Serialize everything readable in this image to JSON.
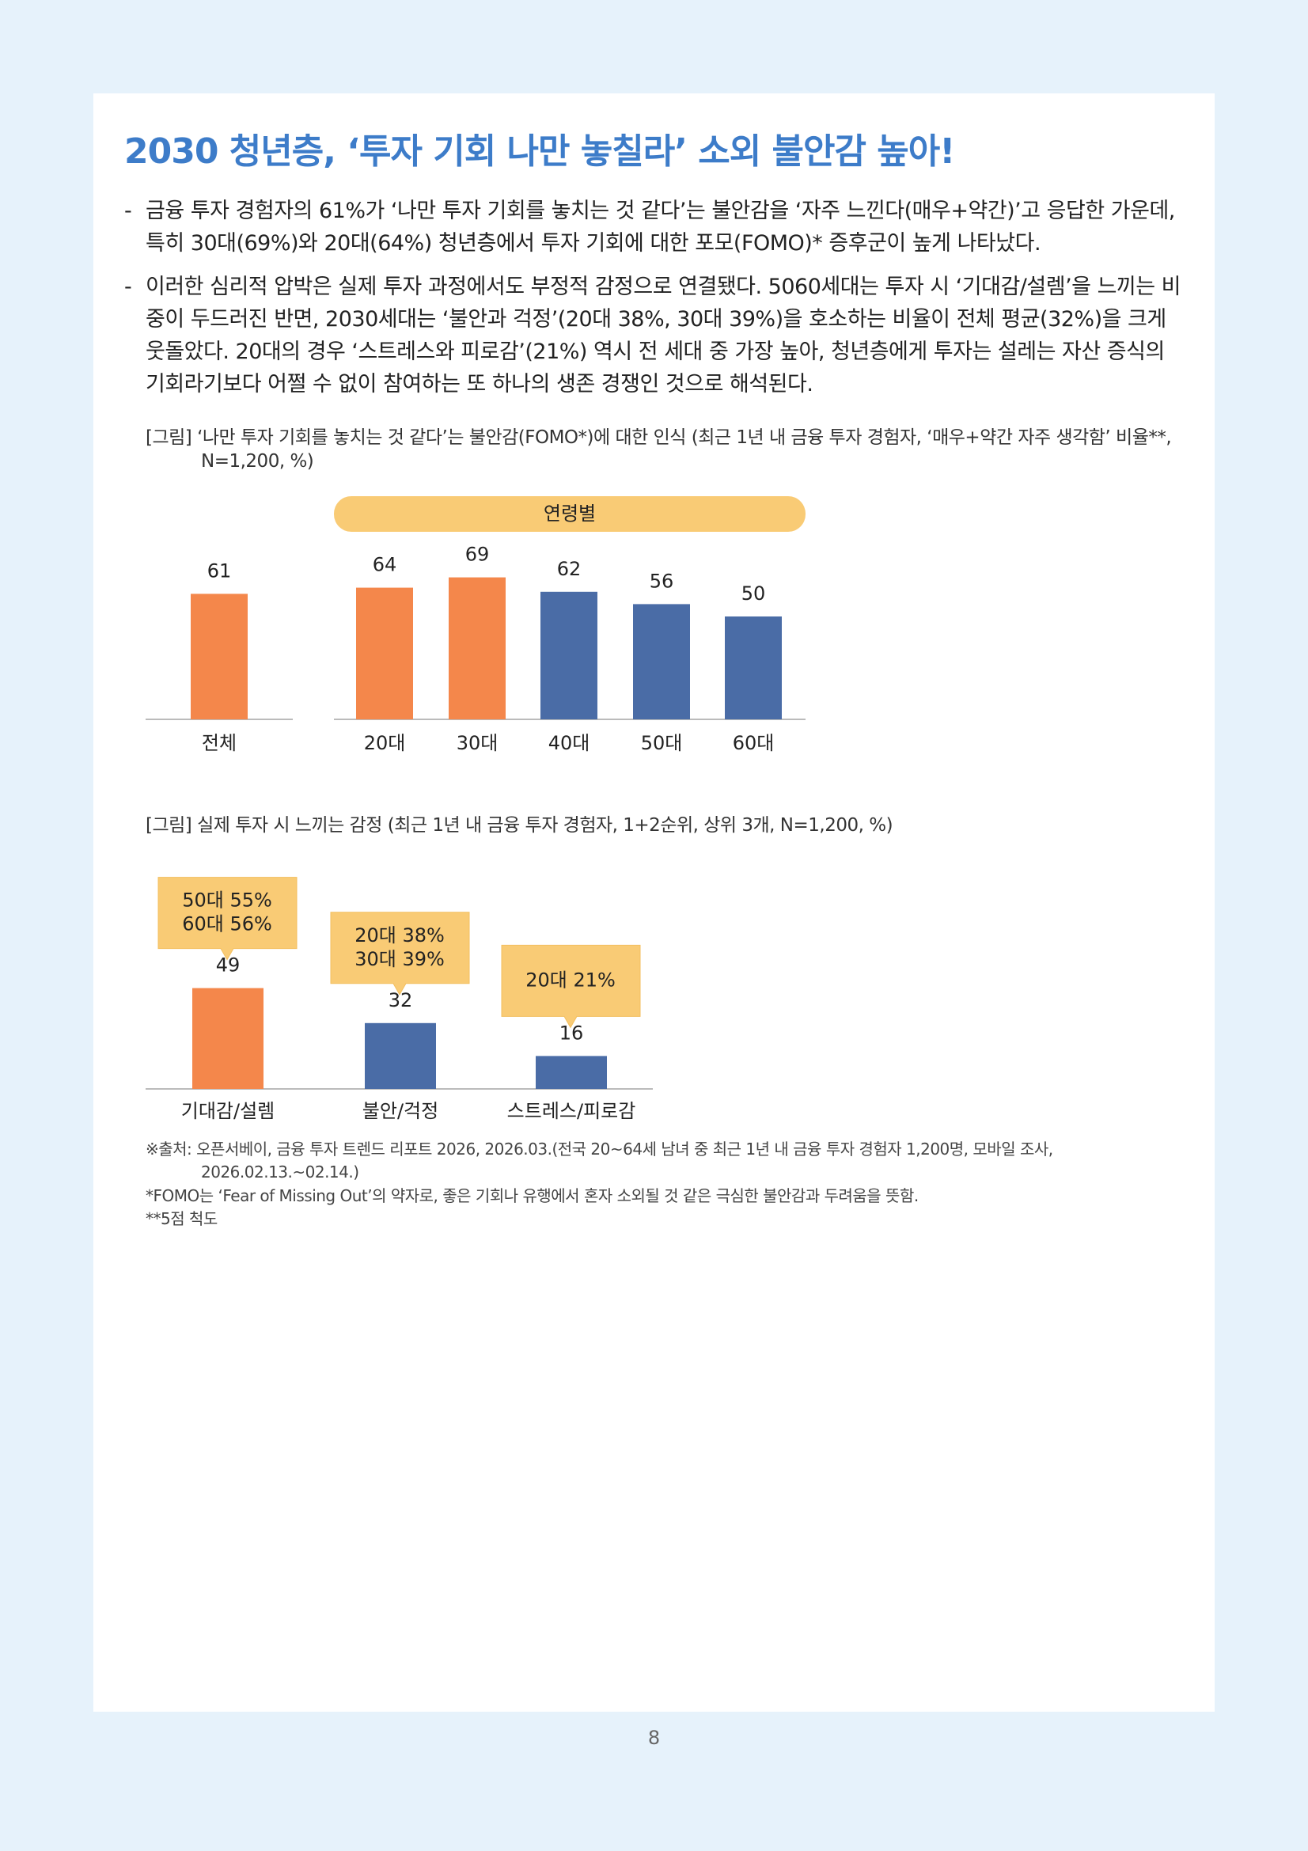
{
  "header": {
    "title": "2030 청년층, ‘투자 기회 나만 놓칠라’ 소외 불안감 높아!"
  },
  "bullets": [
    {
      "marker": "-",
      "text": "금융 투자 경험자의 61%가 ‘나만 투자 기회를 놓치는 것 같다’는 불안감을 ‘자주 느낀다(매우+약간)’고 응답한 가운데, 특히 30대(69%)와 20대(64%) 청년층에서 투자 기회에 대한 포모(FOMO)* 증후군이 높게 나타났다."
    },
    {
      "marker": "-",
      "text": "이러한 심리적 압박은 실제 투자 과정에서도 부정적 감정으로 연결됐다. 5060세대는 투자 시 ‘기대감/설렘’을 느끼는 비중이 두드러진 반면, 2030세대는 ‘불안과 걱정’(20대 38%, 30대 39%)을 호소하는 비율이 전체 평균(32%)을 크게 웃돌았다. 20대의 경우 ‘스트레스와 피로감’(21%) 역시 전 세대 중 가장 높아, 청년층에게 투자는 설레는 자산 증식의 기회라기보다 어쩔 수 없이 참여하는 또 하나의 생존 경쟁인 것으로 해석된다."
    }
  ],
  "chart_data": [
    {
      "type": "bar",
      "caption": "[그림] ‘나만 투자 기회를 놓치는 것 같다’는 불안감(FOMO*)에 대한 인식 (최근 1년 내 금융 투자 경험자, ‘매우+약간 자주 생각함’ 비율**, N=1,200, %)",
      "group_label": "연령별",
      "categories": [
        "전체",
        "20대",
        "30대",
        "40대",
        "50대",
        "60대"
      ],
      "values": [
        61,
        64,
        69,
        62,
        56,
        50
      ],
      "colors": [
        "#f4874b",
        "#f4874b",
        "#f4874b",
        "#4a6ca6",
        "#4a6ca6",
        "#4a6ca6"
      ]
    },
    {
      "type": "bar",
      "caption": "[그림] 실제 투자 시 느끼는 감정 (최근 1년 내 금융 투자 경험자, 1+2순위, 상위 3개, N=1,200, %)",
      "categories": [
        "기대감/설렘",
        "불안/걱정",
        "스트레스/피로감"
      ],
      "values": [
        49,
        32,
        16
      ],
      "colors": [
        "#f4874b",
        "#4a6ca6",
        "#4a6ca6"
      ],
      "annotations": [
        [
          "50대 55%",
          "60대 56%"
        ],
        [
          "20대 38%",
          "30대 39%"
        ],
        [
          "20대 21%"
        ]
      ]
    }
  ],
  "footnotes": [
    "※출처: 오픈서베이, 금융 투자 트렌드 리포트 2026, 2026.03.(전국 20~64세 남녀 중 최근 1년 내 금융 투자 경험자 1,200명, 모바일 조사, 2026.02.13.~02.14.)",
    "*FOMO는 ‘Fear of Missing Out’의 약자로, 좋은 기회나 유행에서 혼자 소외될 것 같은 극심한 불안감과 두려움을 뜻함.",
    "**5점 척도"
  ],
  "page_number": "8"
}
